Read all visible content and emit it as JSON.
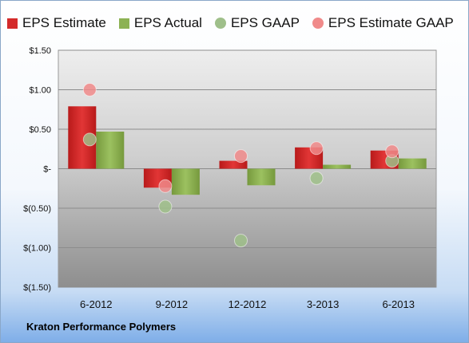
{
  "chart_data": {
    "type": "bar",
    "categories": [
      "6-2012",
      "9-2012",
      "12-2012",
      "3-2013",
      "6-2013"
    ],
    "series": [
      {
        "name": "EPS Estimate",
        "kind": "bar",
        "color": "#d42a2a",
        "values": [
          0.79,
          -0.24,
          0.1,
          0.27,
          0.23
        ]
      },
      {
        "name": "EPS Actual",
        "kind": "bar",
        "color": "#8db254",
        "values": [
          0.47,
          -0.33,
          -0.21,
          0.05,
          0.13
        ]
      },
      {
        "name": "EPS GAAP",
        "kind": "dot",
        "color": "#9fbf8a",
        "values": [
          0.37,
          -0.48,
          -0.91,
          -0.12,
          0.1
        ]
      },
      {
        "name": "EPS Estimate GAAP",
        "kind": "dot",
        "color": "#f08a8a",
        "values": [
          1.0,
          -0.22,
          0.16,
          0.26,
          0.22
        ]
      }
    ],
    "ylim": [
      -1.5,
      1.5
    ],
    "yticks": [
      1.5,
      1.0,
      0.5,
      0,
      -0.5,
      -1.0,
      -1.5
    ],
    "ytick_labels": [
      "$1.50",
      "$1.00",
      "$0.50",
      "$-",
      "$(0.50)",
      "$(1.00)",
      "$(1.50)"
    ],
    "grid": true,
    "legend_position": "top"
  },
  "footer": {
    "company": "Kraton Performance Polymers"
  }
}
